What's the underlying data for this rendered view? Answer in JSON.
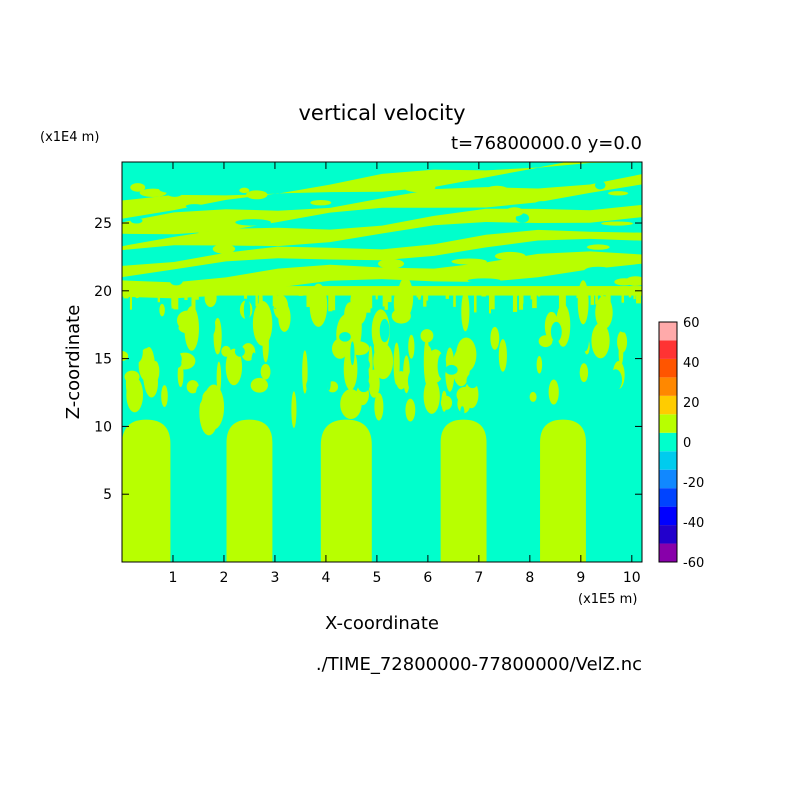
{
  "figure": {
    "title": "vertical velocity",
    "subtitle": "t=76800000.0 y=0.0",
    "footer": "./TIME_72800000-77800000/VelZ.nc"
  },
  "chart_data": {
    "type": "heatmap",
    "title": "vertical velocity",
    "subtitle": "t=76800000.0 y=0.0",
    "xlabel": "X-coordinate",
    "ylabel": "Z-coordinate",
    "x_unit": "(x1E5 m)",
    "y_unit": "(x1E4 m)",
    "xlim": [
      0,
      10.2
    ],
    "ylim": [
      0,
      29.5
    ],
    "xticks": [
      1,
      2,
      3,
      4,
      5,
      6,
      7,
      8,
      9,
      10
    ],
    "yticks": [
      5,
      10,
      15,
      20,
      25
    ],
    "grid": false,
    "colorbar": {
      "levels": [
        -60,
        -50,
        -40,
        -30,
        -20,
        -10,
        0,
        10,
        20,
        30,
        40,
        50,
        60
      ],
      "tick_labels": [
        "60",
        "40",
        "20",
        "0",
        "-20",
        "-40",
        "-60"
      ],
      "colors": [
        "#8800aa",
        "#2200cc",
        "#0000ff",
        "#0044ff",
        "#1188ff",
        "#00ccee",
        "#00ffcc",
        "#b8ff00",
        "#ffcc00",
        "#ff8800",
        "#ff5500",
        "#ff3333",
        "#ffaaaa"
      ]
    },
    "fields": {
      "lower_columns_positive_x": [
        [
          0,
          0.95
        ],
        [
          2.05,
          2.95
        ],
        [
          3.9,
          4.9
        ],
        [
          6.25,
          7.15
        ],
        [
          8.2,
          9.1
        ]
      ],
      "lower_column_top": 10.5,
      "tropopause": 20,
      "stratospheric_bands_positive_y": [
        [
          20.6,
          21.8
        ],
        [
          22.6,
          23.4
        ],
        [
          24.2,
          25.1
        ],
        [
          25.8,
          26.8
        ],
        [
          27.6,
          28.3
        ]
      ]
    }
  }
}
